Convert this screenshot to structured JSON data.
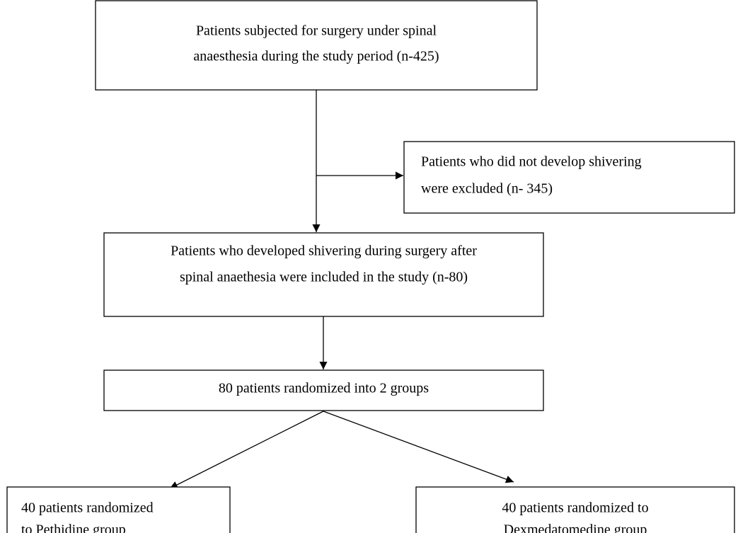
{
  "nodes": [
    {
      "lines": [
        "Patients subjected for surgery under spinal",
        "anaesthesia during the study period (n-425)"
      ]
    },
    {
      "lines": [
        "Patients who did not develop shivering",
        "were excluded (n- 345)"
      ]
    },
    {
      "lines": [
        "Patients who developed shivering during surgery after",
        "spinal anaethesia were included in the study (n-80)"
      ]
    },
    {
      "lines": [
        "80 patients randomized into 2 groups"
      ]
    },
    {
      "lines": [
        "40 patients randomized",
        "to Pethidine group"
      ]
    },
    {
      "lines": [
        "40 patients randomized to",
        "Dexmedatomedine group"
      ]
    }
  ]
}
